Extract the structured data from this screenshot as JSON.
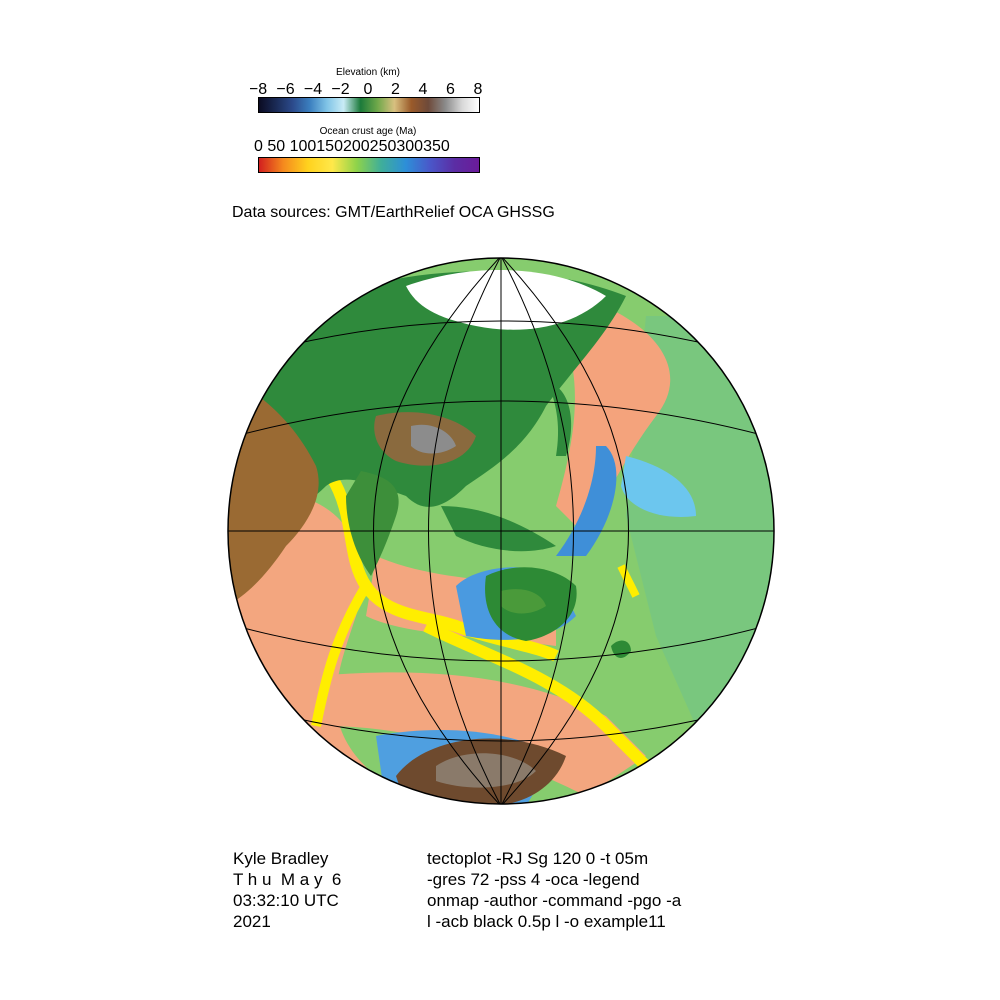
{
  "elevation_colorbar": {
    "title": "Elevation (km)",
    "ticks": [
      "−8",
      "−6",
      "−4",
      "−2",
      "0",
      "2",
      "4",
      "6",
      "8"
    ],
    "range": [
      -8,
      8
    ],
    "stops": [
      "#0b0b22",
      "#1a2a55",
      "#2c4b8c",
      "#3b7fbf",
      "#7fc3e6",
      "#c9ecf6",
      "#1b7a3a",
      "#6fa84a",
      "#d8c080",
      "#9a5a2a",
      "#6e4a3a",
      "#8a8a8a",
      "#d8d8d8",
      "#ffffff"
    ]
  },
  "age_colorbar": {
    "title": "Ocean crust age (Ma)",
    "ticks": "0   50 1001502002503003 50",
    "ticks_exact": "0   50 100150200250300350",
    "range": [
      0,
      350
    ],
    "stops": [
      "#d21f1f",
      "#f58a1e",
      "#ffd21e",
      "#ffe84a",
      "#8ed34a",
      "#3fae9a",
      "#2d8fd8",
      "#4a57c9",
      "#5b2da4",
      "#6b1b9a"
    ]
  },
  "data_sources": "Data sources: GMT/EarthRelief OCA GHSSG",
  "map": {
    "projection": "Stereographic centered 120E 0N",
    "colors": {
      "ocean_young": "#f4a37c",
      "ocean_mid": "#8ccf6a",
      "ocean_old": "#7cc78a",
      "ridge": "#ffee00",
      "shelf": "#4f9fe0",
      "land_low": "#2f8a3c",
      "land_high": "#8a5a2a",
      "ice": "#ffffff",
      "antarctica": "#6e4a2e"
    }
  },
  "footer": {
    "author": "Kyle Bradley",
    "date_line1": "T h u  M a y  6",
    "date_line2": "03:32:10 UTC",
    "year": "2021",
    "command_1": "tectoplot -RJ Sg 120 0 -t 05m",
    "command_2": "-gres 72 -pss 4 -oca -legend",
    "command_3": "onmap -author -command -pgo -a",
    "command_4": "l -acb black 0.5p l -o example11"
  }
}
